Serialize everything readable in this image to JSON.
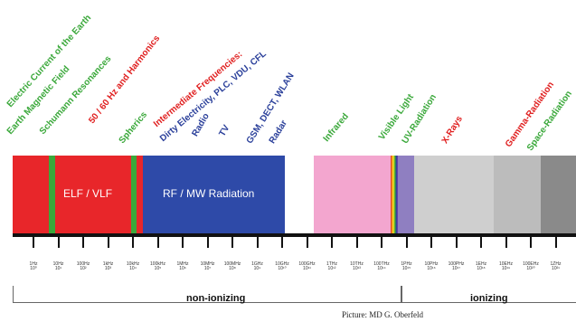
{
  "labels": [
    {
      "text": "Electric Current of the Earth",
      "color": "#3aa83a"
    },
    {
      "text": "Earth Magnetic Field",
      "color": "#3aa83a"
    },
    {
      "text": "Schumann Resonances",
      "color": "#3aa83a"
    },
    {
      "text": "50 / 60 Hz and Harmonics",
      "color": "#e02020"
    },
    {
      "text": "Spherics",
      "color": "#3aa83a"
    },
    {
      "text": "Intermediate Frequencies:",
      "color": "#e02020"
    },
    {
      "text": "Dirty Electricity, PLC, VDU, CFL",
      "color": "#2a3f9a"
    },
    {
      "text": "Radio",
      "color": "#2a3f9a"
    },
    {
      "text": "TV",
      "color": "#2a3f9a"
    },
    {
      "text": "GSM, DECT, WLAN",
      "color": "#2a3f9a"
    },
    {
      "text": "Radar",
      "color": "#2a3f9a"
    },
    {
      "text": "Infrared",
      "color": "#3aa83a"
    },
    {
      "text": "Visible Light",
      "color": "#3aa83a"
    },
    {
      "text": "UV-Radiation",
      "color": "#3aa83a"
    },
    {
      "text": "X-Rays",
      "color": "#e02020"
    },
    {
      "text": "Gamma-Radiation",
      "color": "#e02020"
    },
    {
      "text": "Space-Radiation",
      "color": "#3aa83a"
    }
  ],
  "bands": {
    "elf": {
      "label": "ELF / VLF",
      "color": "#e8262a"
    },
    "rf": {
      "label": "RF / MW Radiation",
      "color": "#2e4aa8"
    },
    "infrared": {
      "color": "#f3a6cf"
    },
    "uv": {
      "color": "#8f7fc1"
    },
    "ionizing_light": {
      "color": "#cfcfcf"
    },
    "ionizing_mid": {
      "color": "#bcbcbc"
    },
    "ionizing_dark": {
      "color": "#8a8a8a"
    },
    "stripe_green": {
      "color": "#3aa83a"
    }
  },
  "frequencies": [
    {
      "value": "1Hz",
      "exp": "10⁰"
    },
    {
      "value": "10Hz",
      "exp": "10¹"
    },
    {
      "value": "100Hz",
      "exp": "10²"
    },
    {
      "value": "1kHz",
      "exp": "10³"
    },
    {
      "value": "10kHz",
      "exp": "10⁴"
    },
    {
      "value": "100kHz",
      "exp": "10⁵"
    },
    {
      "value": "1MHz",
      "exp": "10⁶"
    },
    {
      "value": "10MHz",
      "exp": "10⁷"
    },
    {
      "value": "100MHz",
      "exp": "10⁸"
    },
    {
      "value": "1GHz",
      "exp": "10⁹"
    },
    {
      "value": "10GHz",
      "exp": "10¹⁰"
    },
    {
      "value": "100GHz",
      "exp": "10¹¹"
    },
    {
      "value": "1THz",
      "exp": "10¹²"
    },
    {
      "value": "10THz",
      "exp": "10¹³"
    },
    {
      "value": "100THz",
      "exp": "10¹⁴"
    },
    {
      "value": "1PHz",
      "exp": "10¹⁵"
    },
    {
      "value": "10PHz",
      "exp": "10¹⁶"
    },
    {
      "value": "100PHz",
      "exp": "10¹⁷"
    },
    {
      "value": "1EHz",
      "exp": "10¹⁸"
    },
    {
      "value": "10EHz",
      "exp": "10¹⁹"
    },
    {
      "value": "100EHz",
      "exp": "10²⁰"
    },
    {
      "value": "1ZHz",
      "exp": "10²¹"
    }
  ],
  "ranges": {
    "non_ionizing": "non-ionizing",
    "ionizing": "ionizing"
  },
  "credit": "Picture: MD G. Oberfeld"
}
